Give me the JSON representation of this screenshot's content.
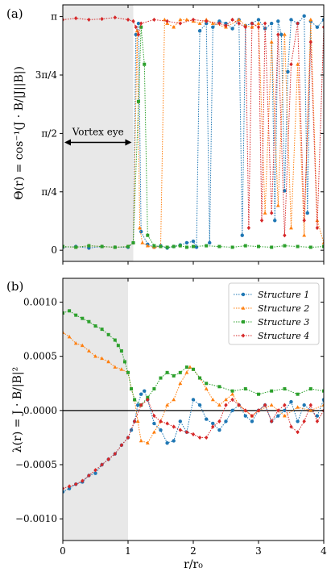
{
  "chart_data": [
    {
      "panel_label": "(a)",
      "type": "line",
      "ylabel": "Θ(r) = cos⁻¹(J · B/|J||B|)",
      "xlim": [
        0,
        4
      ],
      "ylim": [
        -0.15,
        3.3
      ],
      "y_ticks": [
        {
          "value": 0,
          "label": "0"
        },
        {
          "value": 0.7854,
          "label": "π/4"
        },
        {
          "value": 1.5708,
          "label": "π/2"
        },
        {
          "value": 2.3562,
          "label": "3π/4"
        },
        {
          "value": 3.1416,
          "label": "π"
        }
      ],
      "x_ticks": [
        0,
        1,
        2,
        3,
        4
      ],
      "x_tick_labels_shown": false,
      "shaded_region": [
        0,
        1.08
      ],
      "annotation": {
        "text": "Vortex eye",
        "x_from": 0,
        "x_to": 1.08,
        "y": 1.45
      },
      "series": [
        {
          "color": "#1f77b4",
          "marker": "circle",
          "x": [
            0.0,
            0.2,
            0.4,
            0.6,
            0.8,
            1.0,
            1.08,
            1.12,
            1.16,
            1.2,
            1.3,
            1.4,
            1.5,
            1.6,
            1.7,
            1.8,
            1.9,
            2.0,
            2.05,
            2.1,
            2.2,
            2.25,
            2.3,
            2.4,
            2.5,
            2.6,
            2.7,
            2.75,
            2.8,
            2.9,
            3.0,
            3.1,
            3.2,
            3.25,
            3.3,
            3.35,
            3.4,
            3.45,
            3.5,
            3.6,
            3.7,
            3.75,
            3.8,
            3.9,
            4.0
          ],
          "y": [
            0.04,
            0.05,
            0.03,
            0.05,
            0.04,
            0.04,
            0.1,
            2.9,
            3.05,
            0.25,
            0.08,
            0.04,
            0.06,
            0.03,
            0.05,
            0.07,
            0.1,
            0.12,
            0.04,
            2.95,
            3.05,
            0.1,
            3.0,
            3.08,
            3.05,
            2.98,
            3.1,
            0.2,
            3.02,
            3.05,
            3.1,
            2.98,
            3.05,
            0.4,
            3.08,
            2.9,
            0.8,
            2.4,
            3.1,
            3.05,
            3.15,
            0.5,
            3.08,
            3.0,
            3.1
          ]
        },
        {
          "color": "#ff7f0e",
          "marker": "triangle",
          "x": [
            0.0,
            0.2,
            0.4,
            0.6,
            0.8,
            1.0,
            1.08,
            1.14,
            1.18,
            1.22,
            1.3,
            1.4,
            1.5,
            1.56,
            1.6,
            1.7,
            1.8,
            1.9,
            2.0,
            2.1,
            2.2,
            2.3,
            2.5,
            2.7,
            2.8,
            2.9,
            3.0,
            3.1,
            3.2,
            3.3,
            3.4,
            3.5,
            3.6,
            3.7,
            3.8,
            3.9,
            4.0
          ],
          "y": [
            0.05,
            0.04,
            0.06,
            0.05,
            0.04,
            0.05,
            0.1,
            2.95,
            0.3,
            0.1,
            0.06,
            0.04,
            0.05,
            3.1,
            3.05,
            3.0,
            3.1,
            3.1,
            3.08,
            3.05,
            3.1,
            3.05,
            3.0,
            3.1,
            3.02,
            3.0,
            3.05,
            0.5,
            2.8,
            0.6,
            2.9,
            0.3,
            2.5,
            0.2,
            3.1,
            0.4,
            0.1
          ]
        },
        {
          "color": "#2ca02c",
          "marker": "square",
          "x": [
            0.0,
            0.2,
            0.4,
            0.6,
            0.8,
            1.0,
            1.08,
            1.16,
            1.2,
            1.25,
            1.3,
            1.4,
            1.5,
            1.6,
            1.7,
            1.8,
            1.9,
            2.0,
            2.2,
            2.4,
            2.6,
            2.8,
            3.0,
            3.2,
            3.4,
            3.6,
            3.8,
            4.0
          ],
          "y": [
            0.05,
            0.04,
            0.06,
            0.05,
            0.04,
            0.05,
            0.1,
            2.0,
            3.0,
            2.5,
            0.2,
            0.06,
            0.05,
            0.04,
            0.05,
            0.06,
            0.04,
            0.05,
            0.06,
            0.05,
            0.04,
            0.06,
            0.05,
            0.04,
            0.06,
            0.05,
            0.04,
            0.05
          ]
        },
        {
          "color": "#d62728",
          "marker": "diamond",
          "x": [
            0.0,
            0.2,
            0.4,
            0.6,
            0.8,
            1.0,
            1.08,
            1.12,
            1.16,
            1.2,
            1.4,
            1.6,
            1.8,
            2.0,
            2.2,
            2.4,
            2.5,
            2.6,
            2.7,
            2.8,
            2.85,
            2.9,
            3.0,
            3.05,
            3.1,
            3.2,
            3.3,
            3.4,
            3.5,
            3.6,
            3.7,
            3.8,
            3.9,
            4.0
          ],
          "y": [
            3.1,
            3.12,
            3.1,
            3.11,
            3.13,
            3.1,
            3.08,
            3.0,
            2.9,
            3.05,
            3.1,
            3.08,
            3.05,
            3.1,
            3.08,
            3.05,
            3.02,
            3.1,
            3.05,
            3.0,
            0.3,
            3.05,
            3.0,
            0.4,
            3.05,
            0.5,
            2.9,
            0.2,
            2.5,
            3.05,
            0.4,
            2.8,
            0.3,
            3.0
          ]
        }
      ]
    },
    {
      "panel_label": "(b)",
      "type": "line",
      "xlabel": "r/r₀",
      "ylabel": "λ(r) = J · B/|B|²",
      "xlim": [
        0,
        4
      ],
      "ylim": [
        -0.0012,
        0.00122
      ],
      "y_ticks": [
        {
          "value": 0.001,
          "label": "0.0010"
        },
        {
          "value": 0.0005,
          "label": "0.0005"
        },
        {
          "value": 0.0,
          "label": "0.0000"
        },
        {
          "value": -0.0005,
          "label": "−0.0005"
        },
        {
          "value": -0.001,
          "label": "−0.0010"
        }
      ],
      "x_ticks": [
        {
          "value": 0,
          "label": "0"
        },
        {
          "value": 1,
          "label": "1"
        },
        {
          "value": 2,
          "label": "2"
        },
        {
          "value": 3,
          "label": "3"
        },
        {
          "value": 4,
          "label": "4"
        }
      ],
      "shaded_region": [
        0,
        1.0
      ],
      "hline": 0,
      "legend_position": "top-right",
      "series": [
        {
          "name": "Structure 1",
          "color": "#1f77b4",
          "marker": "circle",
          "x": [
            0.0,
            0.1,
            0.2,
            0.3,
            0.4,
            0.5,
            0.6,
            0.7,
            0.8,
            0.9,
            1.0,
            1.05,
            1.1,
            1.15,
            1.2,
            1.25,
            1.3,
            1.4,
            1.5,
            1.6,
            1.7,
            1.8,
            1.9,
            2.0,
            2.1,
            2.2,
            2.3,
            2.4,
            2.5,
            2.6,
            2.7,
            2.8,
            2.9,
            3.0,
            3.1,
            3.2,
            3.3,
            3.4,
            3.5,
            3.6,
            3.7,
            3.8,
            3.9,
            4.0
          ],
          "y": [
            -0.00075,
            -0.00072,
            -0.00068,
            -0.00066,
            -0.0006,
            -0.00058,
            -0.0005,
            -0.00045,
            -0.0004,
            -0.00032,
            -0.00025,
            -0.00018,
            -0.0001,
            5e-05,
            0.00015,
            0.00018,
            0.0001,
            -0.00012,
            -0.00018,
            -0.0003,
            -0.00028,
            -0.0001,
            -0.0002,
            0.0001,
            5e-05,
            -8e-05,
            -0.00012,
            -0.00018,
            -0.0001,
            0.0,
            5e-05,
            -5e-05,
            -0.0001,
            0.0,
            5e-05,
            -0.0001,
            -5e-05,
            0.0,
            8e-05,
            -0.0001,
            5e-05,
            0.0,
            -5e-05,
            0.0001
          ]
        },
        {
          "name": "Structure 2",
          "color": "#ff7f0e",
          "marker": "triangle",
          "x": [
            0.0,
            0.1,
            0.2,
            0.3,
            0.4,
            0.5,
            0.6,
            0.7,
            0.8,
            0.9,
            1.0,
            1.05,
            1.1,
            1.15,
            1.2,
            1.3,
            1.4,
            1.5,
            1.6,
            1.7,
            1.8,
            1.9,
            1.95,
            2.0,
            2.1,
            2.2,
            2.3,
            2.4,
            2.5,
            2.6,
            2.7,
            2.8,
            2.9,
            3.0,
            3.2,
            3.4,
            3.6,
            3.8,
            4.0
          ],
          "y": [
            0.00072,
            0.00068,
            0.00062,
            0.0006,
            0.00055,
            0.0005,
            0.00048,
            0.00045,
            0.0004,
            0.00038,
            0.00035,
            0.0002,
            0.0001,
            -0.0001,
            -0.00028,
            -0.0003,
            -0.0002,
            -0.0001,
            5e-05,
            0.0001,
            0.00025,
            0.00035,
            0.0004,
            0.00038,
            0.0003,
            0.0002,
            0.0001,
            5e-05,
            0.0001,
            0.00015,
            5e-05,
            0.0,
            -5e-05,
            0.0,
            5e-05,
            -5e-05,
            3e-05,
            0.0,
            5e-05
          ]
        },
        {
          "name": "Structure 3",
          "color": "#2ca02c",
          "marker": "square",
          "x": [
            0.0,
            0.1,
            0.2,
            0.3,
            0.4,
            0.5,
            0.6,
            0.7,
            0.8,
            0.85,
            0.9,
            0.95,
            1.0,
            1.05,
            1.1,
            1.2,
            1.3,
            1.4,
            1.5,
            1.6,
            1.7,
            1.8,
            1.9,
            2.0,
            2.1,
            2.2,
            2.4,
            2.6,
            2.8,
            3.0,
            3.2,
            3.4,
            3.6,
            3.8,
            4.0
          ],
          "y": [
            0.0009,
            0.00092,
            0.00088,
            0.00085,
            0.00082,
            0.00078,
            0.00075,
            0.0007,
            0.00065,
            0.0006,
            0.00055,
            0.00045,
            0.00035,
            0.0002,
            0.0001,
            5e-05,
            0.00012,
            0.0002,
            0.0003,
            0.00035,
            0.00032,
            0.00035,
            0.0004,
            0.00038,
            0.0003,
            0.00025,
            0.00022,
            0.00018,
            0.0002,
            0.00015,
            0.00018,
            0.0002,
            0.00015,
            0.0002,
            0.00018
          ]
        },
        {
          "name": "Structure 4",
          "color": "#d62728",
          "marker": "diamond",
          "x": [
            0.0,
            0.1,
            0.2,
            0.3,
            0.4,
            0.5,
            0.6,
            0.7,
            0.8,
            0.9,
            1.0,
            1.1,
            1.2,
            1.3,
            1.4,
            1.5,
            1.6,
            1.7,
            1.8,
            1.9,
            2.0,
            2.1,
            2.2,
            2.3,
            2.4,
            2.5,
            2.6,
            2.7,
            2.8,
            2.9,
            3.0,
            3.1,
            3.2,
            3.3,
            3.4,
            3.5,
            3.6,
            3.7,
            3.8,
            3.9,
            4.0
          ],
          "y": [
            -0.00072,
            -0.0007,
            -0.00068,
            -0.00065,
            -0.0006,
            -0.00055,
            -0.0005,
            -0.00045,
            -0.0004,
            -0.00032,
            -0.00025,
            -0.0001,
            5e-05,
            0.0001,
            -5e-05,
            -0.0001,
            -0.00012,
            -0.00015,
            -0.00018,
            -0.0002,
            -0.00022,
            -0.00025,
            -0.00025,
            -0.00015,
            -0.0001,
            5e-05,
            0.0001,
            5e-05,
            0.0,
            -5e-05,
            0.0,
            5e-05,
            -0.0001,
            0.0,
            5e-05,
            -0.00015,
            -0.0002,
            -0.0001,
            5e-05,
            -0.0001,
            0.0
          ]
        }
      ]
    }
  ]
}
